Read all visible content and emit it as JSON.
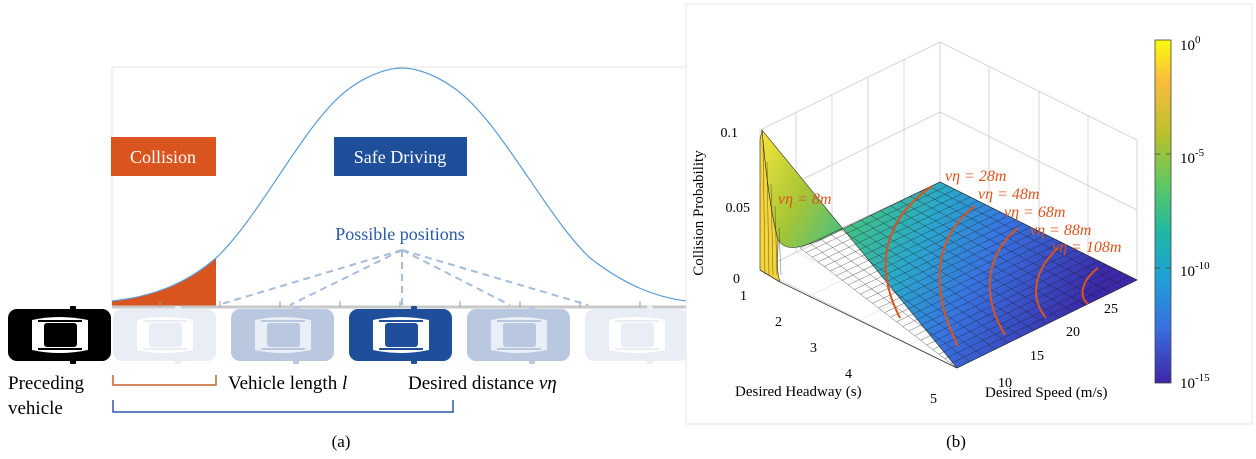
{
  "panel_a": {
    "collision_label": "Collision",
    "safe_label": "Safe Driving",
    "possible_label": "Possible positions",
    "preceding_line1": "Preceding",
    "preceding_line2": "vehicle",
    "vehicle_length_label": "Vehicle length ",
    "vehicle_length_var": "l",
    "desired_distance_label": "Desired distance ",
    "desired_distance_var": "vη",
    "caption": "(a)",
    "colors": {
      "collision": "#d9541e",
      "safe": "#1f4e9a",
      "curve": "#5b9bd5",
      "dash": "#a7bcd8"
    }
  },
  "panel_b": {
    "caption": "(b)",
    "z_label": "Collision Probability",
    "z_ticks": [
      "0.1",
      "0.05",
      "0"
    ],
    "headway_label": "Desired Headway (s)",
    "headway_ticks": [
      "1",
      "2",
      "3",
      "4",
      "5"
    ],
    "speed_label": "Desired Speed (m/s)",
    "speed_ticks": [
      "10",
      "15",
      "20",
      "25"
    ],
    "contour_labels": [
      "vη = 8m",
      "vη = 28m",
      "vη = 48m",
      "vη = 68m",
      "vη = 88m",
      "vη = 108m"
    ],
    "colorbar_ticks": [
      {
        "base": "10",
        "exp": "0"
      },
      {
        "base": "10",
        "exp": "-5"
      },
      {
        "base": "10",
        "exp": "-10"
      },
      {
        "base": "10",
        "exp": "-15"
      }
    ],
    "colors": {
      "contour": "#d9541e"
    }
  }
}
